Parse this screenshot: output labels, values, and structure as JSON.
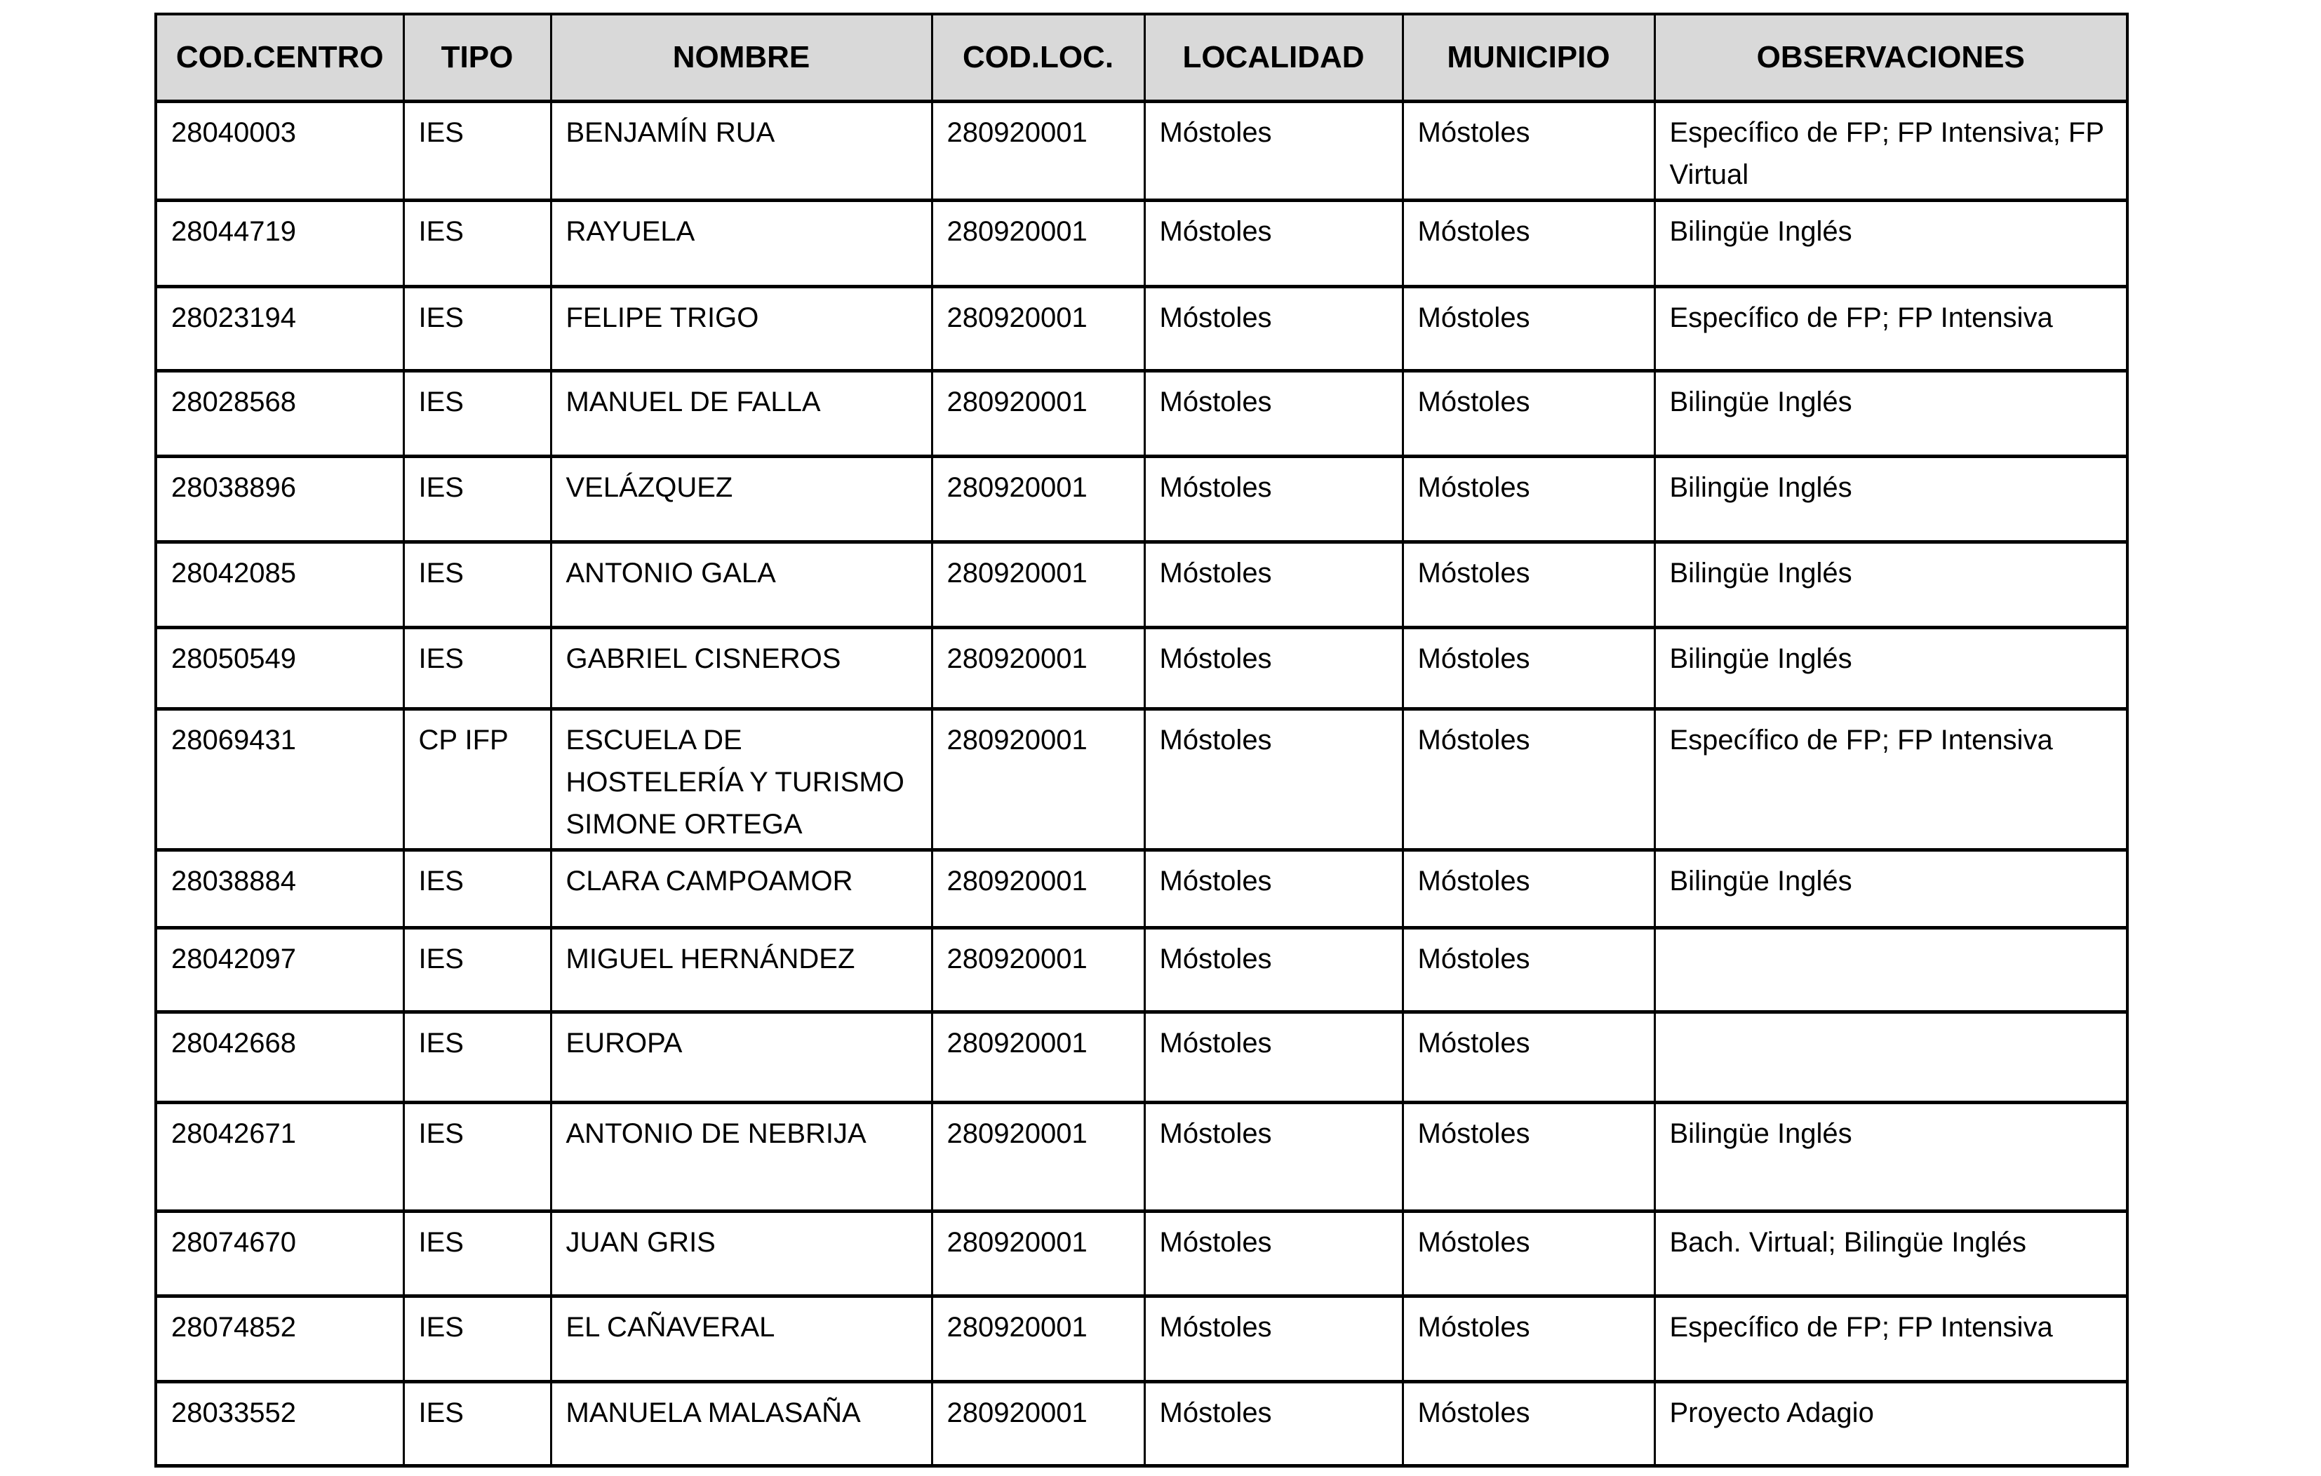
{
  "table": {
    "headers": {
      "cod_centro": "COD.CENTRO",
      "tipo": "TIPO",
      "nombre": "NOMBRE",
      "cod_loc": "COD.LOC.",
      "localidad": "LOCALIDAD",
      "municipio": "MUNICIPIO",
      "observaciones": "OBSERVACIONES"
    },
    "rows": [
      {
        "cod_centro": "28040003",
        "tipo": "IES",
        "nombre": "BENJAMÍN RUA",
        "cod_loc": "280920001",
        "localidad": "Móstoles",
        "municipio": "Móstoles",
        "observaciones": "Específico de FP; FP Intensiva; FP Virtual"
      },
      {
        "cod_centro": "28044719",
        "tipo": "IES",
        "nombre": "RAYUELA",
        "cod_loc": "280920001",
        "localidad": "Móstoles",
        "municipio": "Móstoles",
        "observaciones": "Bilingüe Inglés"
      },
      {
        "cod_centro": "28023194",
        "tipo": "IES",
        "nombre": "FELIPE TRIGO",
        "cod_loc": "280920001",
        "localidad": "Móstoles",
        "municipio": "Móstoles",
        "observaciones": "Específico de FP; FP Intensiva"
      },
      {
        "cod_centro": "28028568",
        "tipo": "IES",
        "nombre": "MANUEL DE FALLA",
        "cod_loc": "280920001",
        "localidad": "Móstoles",
        "municipio": "Móstoles",
        "observaciones": "Bilingüe Inglés"
      },
      {
        "cod_centro": "28038896",
        "tipo": "IES",
        "nombre": "VELÁZQUEZ",
        "cod_loc": "280920001",
        "localidad": "Móstoles",
        "municipio": "Móstoles",
        "observaciones": "Bilingüe Inglés"
      },
      {
        "cod_centro": "28042085",
        "tipo": "IES",
        "nombre": "ANTONIO GALA",
        "cod_loc": "280920001",
        "localidad": "Móstoles",
        "municipio": "Móstoles",
        "observaciones": "Bilingüe Inglés"
      },
      {
        "cod_centro": "28050549",
        "tipo": "IES",
        "nombre": "GABRIEL CISNEROS",
        "cod_loc": "280920001",
        "localidad": "Móstoles",
        "municipio": "Móstoles",
        "observaciones": "Bilingüe Inglés"
      },
      {
        "cod_centro": "28069431",
        "tipo": "CP IFP",
        "nombre": "ESCUELA DE HOSTELERÍA Y TURISMO SIMONE ORTEGA",
        "cod_loc": "280920001",
        "localidad": "Móstoles",
        "municipio": "Móstoles",
        "observaciones": "Específico de FP; FP Intensiva"
      },
      {
        "cod_centro": "28038884",
        "tipo": "IES",
        "nombre": "CLARA CAMPOAMOR",
        "cod_loc": "280920001",
        "localidad": "Móstoles",
        "municipio": "Móstoles",
        "observaciones": "Bilingüe Inglés"
      },
      {
        "cod_centro": "28042097",
        "tipo": "IES",
        "nombre": "MIGUEL HERNÁNDEZ",
        "cod_loc": "280920001",
        "localidad": "Móstoles",
        "municipio": "Móstoles",
        "observaciones": ""
      },
      {
        "cod_centro": "28042668",
        "tipo": "IES",
        "nombre": "EUROPA",
        "cod_loc": "280920001",
        "localidad": "Móstoles",
        "municipio": "Móstoles",
        "observaciones": ""
      },
      {
        "cod_centro": "28042671",
        "tipo": "IES",
        "nombre": "ANTONIO DE NEBRIJA",
        "cod_loc": "280920001",
        "localidad": "Móstoles",
        "municipio": "Móstoles",
        "observaciones": "Bilingüe Inglés"
      },
      {
        "cod_centro": "28074670",
        "tipo": "IES",
        "nombre": "JUAN GRIS",
        "cod_loc": "280920001",
        "localidad": "Móstoles",
        "municipio": "Móstoles",
        "observaciones": "Bach. Virtual; Bilingüe Inglés"
      },
      {
        "cod_centro": "28074852",
        "tipo": "IES",
        "nombre": "EL CAÑAVERAL",
        "cod_loc": "280920001",
        "localidad": "Móstoles",
        "municipio": "Móstoles",
        "observaciones": "Específico de FP; FP Intensiva"
      },
      {
        "cod_centro": "28033552",
        "tipo": "IES",
        "nombre": "MANUELA MALASAÑA",
        "cod_loc": "280920001",
        "localidad": "Móstoles",
        "municipio": "Móstoles",
        "observaciones": "Proyecto Adagio"
      }
    ],
    "colors": {
      "header_bg": "#d9d9d9",
      "border": "#000000",
      "text": "#000000",
      "page_bg": "#ffffff"
    }
  }
}
